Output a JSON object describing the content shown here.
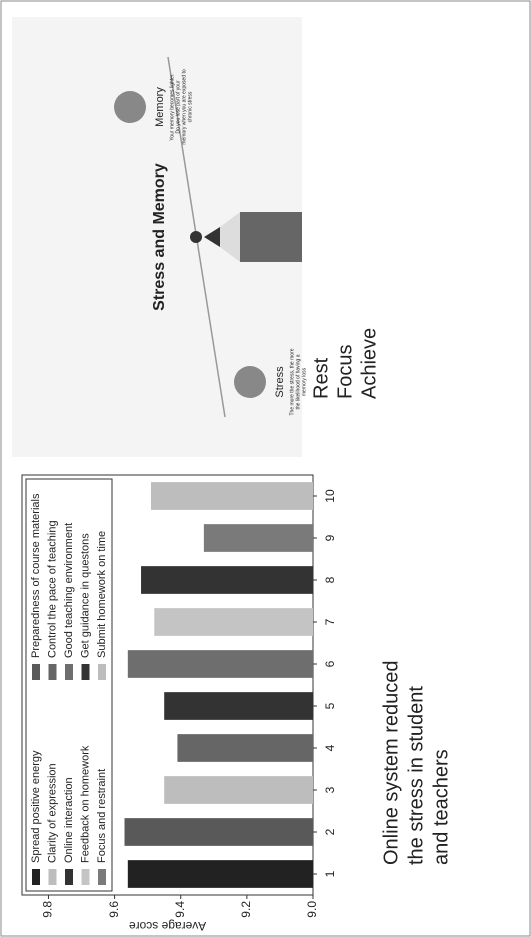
{
  "chart_data": {
    "type": "bar",
    "ylabel": "Average score",
    "categories": [
      "1",
      "2",
      "3",
      "4",
      "5",
      "6",
      "7",
      "8",
      "9",
      "10"
    ],
    "values": [
      9.56,
      9.57,
      9.45,
      9.41,
      9.45,
      9.56,
      9.48,
      9.52,
      9.33,
      9.49
    ],
    "colors": [
      "#222222",
      "#595959",
      "#bdbdbd",
      "#666666",
      "#333333",
      "#6e6e6e",
      "#c4c4c4",
      "#333333",
      "#7a7a7a",
      "#bdbdbd"
    ],
    "legend": [
      "Spread positive energy",
      "Preparedness of course materials",
      "Clarity of expression",
      "Control the pace of teaching",
      "Online interaction",
      "Good teaching environment",
      "Feedback on homework",
      "Get guidance in questons",
      "Focus and restraint",
      "Submit homework on time"
    ],
    "legend_colors": [
      "#222222",
      "#595959",
      "#bdbdbd",
      "#666666",
      "#333333",
      "#6e6e6e",
      "#c4c4c4",
      "#333333",
      "#7a7a7a",
      "#bdbdbd"
    ],
    "ylim": [
      9.0,
      9.88
    ],
    "yticks": [
      {
        "value": 9.0,
        "label": "9.0"
      },
      9.2,
      9.4,
      9.6,
      9.8
    ]
  },
  "slide": {
    "bullet": [
      "Online system reduced",
      "the stress in student",
      "and teachers"
    ],
    "words": [
      "Rest",
      "Focus",
      "Achieve"
    ],
    "infographic": {
      "title": "Stress and Memory",
      "left_label": "Stress",
      "left_text": [
        "The more the stress, the more",
        "the likelihood of having a",
        "memory loss"
      ],
      "right_label": "Memory",
      "right_text": [
        "Your memory becomes lighter.",
        "Do you lose part of your",
        "memory when you are exposed to",
        "chronic stress"
      ]
    }
  }
}
